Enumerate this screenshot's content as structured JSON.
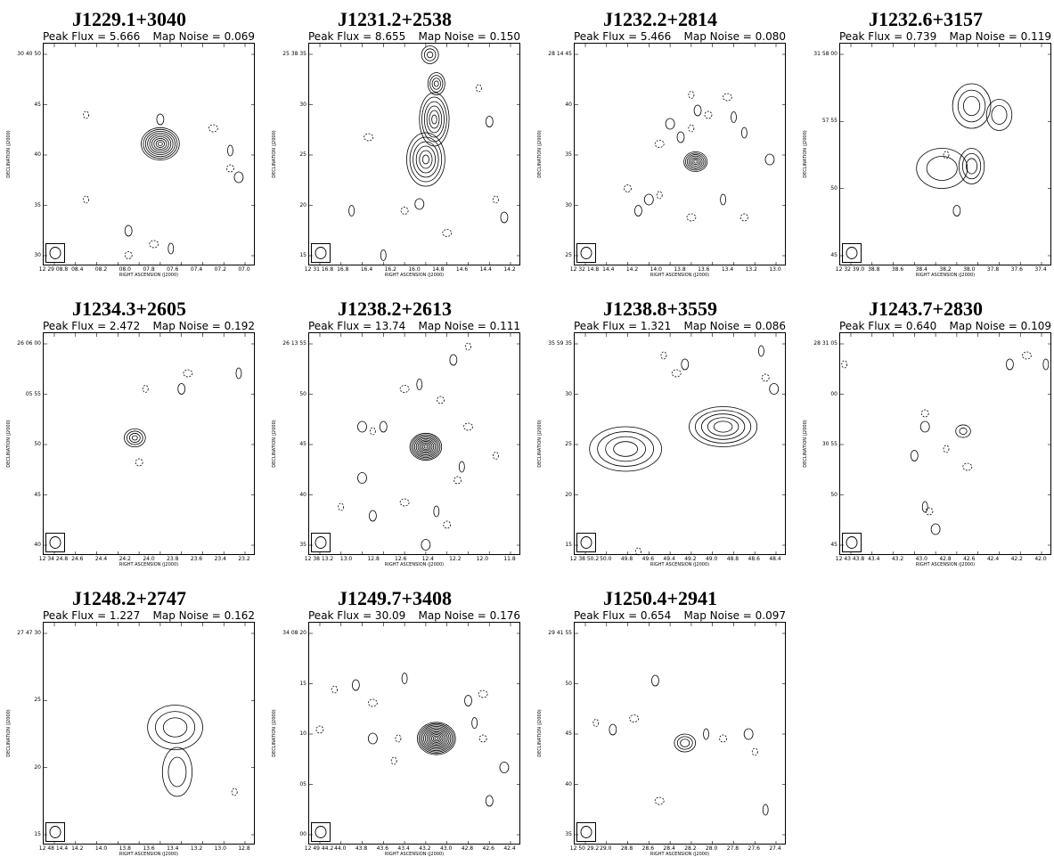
{
  "axes": {
    "xlabel": "RIGHT ASCENSION (J2000)",
    "ylabel": "DECLINATION (J2000)"
  },
  "panels": [
    {
      "title": "J1229.1+3040",
      "peak_flux": "Peak Flux = 5.666",
      "map_noise": "Map Noise = 0.069",
      "yticks": [
        "30 40 50",
        "45",
        "40",
        "35",
        "30"
      ],
      "xticks": [
        "12 29 08.8",
        "08.4",
        "08.2",
        "08.0",
        "07.8",
        "07.6",
        "07.4",
        "07.2",
        "07.0"
      ],
      "source": {
        "type": "compact",
        "cx": 0.55,
        "cy": 0.45,
        "r": 0.09,
        "levels": 9
      },
      "noise": [
        [
          0.2,
          0.32
        ],
        [
          0.55,
          0.34
        ],
        [
          0.8,
          0.38
        ],
        [
          0.88,
          0.48
        ],
        [
          0.88,
          0.56
        ],
        [
          0.92,
          0.6
        ],
        [
          0.2,
          0.7
        ],
        [
          0.4,
          0.84
        ],
        [
          0.52,
          0.9
        ],
        [
          0.6,
          0.92
        ],
        [
          0.4,
          0.95
        ]
      ]
    },
    {
      "title": "J1231.2+2538",
      "peak_flux": "Peak Flux = 8.655",
      "map_noise": "Map Noise = 0.150",
      "yticks": [
        "25 38 35",
        "30",
        "25",
        "20",
        "15"
      ],
      "xticks": [
        "12 31 16.8",
        "16.8",
        "16.4",
        "16.2",
        "16.0",
        "14.8",
        "14.6",
        "14.4",
        "14.2"
      ],
      "source": {
        "type": "jet",
        "points": [
          [
            0.59,
            0.34,
            0.07,
            0.12,
            6
          ],
          [
            0.55,
            0.52,
            0.09,
            0.12,
            6
          ],
          [
            0.6,
            0.18,
            0.04,
            0.05,
            4
          ],
          [
            0.57,
            0.05,
            0.04,
            0.04,
            3
          ]
        ]
      },
      "noise": [
        [
          0.8,
          0.2
        ],
        [
          0.85,
          0.35
        ],
        [
          0.28,
          0.42
        ],
        [
          0.2,
          0.75
        ],
        [
          0.45,
          0.75
        ],
        [
          0.52,
          0.72
        ],
        [
          0.88,
          0.7
        ],
        [
          0.92,
          0.78
        ],
        [
          0.65,
          0.85
        ],
        [
          0.35,
          0.95
        ]
      ]
    },
    {
      "title": "J1232.2+2814",
      "peak_flux": "Peak Flux = 5.466",
      "map_noise": "Map Noise = 0.080",
      "yticks": [
        "28 14 45",
        "40",
        "35",
        "30",
        "25"
      ],
      "xticks": [
        "12 32 14.8",
        "14.4",
        "14.2",
        "14.0",
        "13.8",
        "13.6",
        "13.4",
        "13.2",
        "13.0"
      ],
      "source": {
        "type": "compact",
        "cx": 0.57,
        "cy": 0.53,
        "r": 0.055,
        "levels": 7
      },
      "noise": [
        [
          0.55,
          0.23
        ],
        [
          0.58,
          0.3
        ],
        [
          0.72,
          0.24
        ],
        [
          0.75,
          0.33
        ],
        [
          0.63,
          0.32
        ],
        [
          0.45,
          0.36
        ],
        [
          0.55,
          0.38
        ],
        [
          0.5,
          0.42
        ],
        [
          0.4,
          0.45
        ],
        [
          0.8,
          0.4
        ],
        [
          0.25,
          0.65
        ],
        [
          0.35,
          0.7
        ],
        [
          0.4,
          0.68
        ],
        [
          0.3,
          0.75
        ],
        [
          0.55,
          0.78
        ],
        [
          0.7,
          0.7
        ],
        [
          0.8,
          0.78
        ],
        [
          0.92,
          0.52
        ]
      ]
    },
    {
      "title": "J1232.6+3157",
      "peak_flux": "Peak Flux = 0.739",
      "map_noise": "Map Noise = 0.119",
      "yticks": [
        "31 58 00",
        "57 55",
        "50",
        "45"
      ],
      "xticks": [
        "12 32 39.0",
        "38.8",
        "38.6",
        "38.4",
        "38.2",
        "38.0",
        "37.8",
        "37.6",
        "37.4"
      ],
      "source": {
        "type": "diffuse",
        "blobs": [
          [
            0.62,
            0.28,
            0.09,
            0.1,
            3
          ],
          [
            0.75,
            0.32,
            0.06,
            0.07,
            2
          ],
          [
            0.48,
            0.56,
            0.12,
            0.09,
            2
          ],
          [
            0.62,
            0.55,
            0.06,
            0.08,
            3
          ]
        ]
      },
      "noise": [
        [
          0.5,
          0.5
        ],
        [
          0.55,
          0.75
        ]
      ]
    },
    {
      "title": "J1234.3+2605",
      "peak_flux": "Peak Flux = 2.472",
      "map_noise": "Map Noise = 0.192",
      "yticks": [
        "26 06 00",
        "05 55",
        "50",
        "45",
        "40"
      ],
      "xticks": [
        "12 34 24.8",
        "24.6",
        "24.4",
        "24.2",
        "24.0",
        "23.8",
        "23.6",
        "23.4",
        "23.2"
      ],
      "source": {
        "type": "compact",
        "cx": 0.43,
        "cy": 0.47,
        "r": 0.05,
        "levels": 4
      },
      "noise": [
        [
          0.48,
          0.25
        ],
        [
          0.65,
          0.25
        ],
        [
          0.68,
          0.18
        ],
        [
          0.92,
          0.18
        ],
        [
          0.45,
          0.58
        ]
      ]
    },
    {
      "title": "J1238.2+2613",
      "peak_flux": "Peak Flux = 13.74",
      "map_noise": "Map Noise = 0.111",
      "yticks": [
        "26 13 55",
        "50",
        "45",
        "40",
        "35"
      ],
      "xticks": [
        "12 38 13.2",
        "13.0",
        "12.8",
        "12.6",
        "12.4",
        "12.2",
        "12.0",
        "11.8"
      ],
      "source": {
        "type": "compact",
        "cx": 0.55,
        "cy": 0.51,
        "r": 0.075,
        "levels": 10
      },
      "noise": [
        [
          0.75,
          0.06
        ],
        [
          0.68,
          0.12
        ],
        [
          0.45,
          0.25
        ],
        [
          0.52,
          0.23
        ],
        [
          0.62,
          0.3
        ],
        [
          0.25,
          0.42
        ],
        [
          0.3,
          0.44
        ],
        [
          0.35,
          0.42
        ],
        [
          0.75,
          0.42
        ],
        [
          0.72,
          0.6
        ],
        [
          0.7,
          0.66
        ],
        [
          0.25,
          0.65
        ],
        [
          0.15,
          0.78
        ],
        [
          0.3,
          0.82
        ],
        [
          0.45,
          0.76
        ],
        [
          0.6,
          0.8
        ],
        [
          0.65,
          0.86
        ],
        [
          0.55,
          0.95
        ],
        [
          0.88,
          0.55
        ]
      ]
    },
    {
      "title": "J1238.8+3559",
      "peak_flux": "Peak Flux = 1.321",
      "map_noise": "Map Noise = 0.086",
      "yticks": [
        "35 59 35",
        "30",
        "25",
        "20",
        "15"
      ],
      "xticks": [
        "12 38 50.2",
        "50.0",
        "49.8",
        "49.6",
        "49.4",
        "49.2",
        "49.0",
        "48.8",
        "48.6",
        "48.4"
      ],
      "source": {
        "type": "diffuse",
        "blobs": [
          [
            0.24,
            0.52,
            0.17,
            0.1,
            4
          ],
          [
            0.7,
            0.42,
            0.16,
            0.09,
            5
          ]
        ]
      },
      "noise": [
        [
          0.42,
          0.1
        ],
        [
          0.52,
          0.14
        ],
        [
          0.48,
          0.18
        ],
        [
          0.88,
          0.08
        ],
        [
          0.9,
          0.2
        ],
        [
          0.94,
          0.25
        ],
        [
          0.3,
          0.98
        ]
      ]
    },
    {
      "title": "J1243.7+2830",
      "peak_flux": "Peak Flux = 0.640",
      "map_noise": "Map Noise = 0.109",
      "yticks": [
        "28 31 05",
        "00",
        "30 55",
        "50",
        "45"
      ],
      "xticks": [
        "12 43 43.8",
        "43.4",
        "43.2",
        "43.0",
        "42.8",
        "42.6",
        "42.4",
        "42.2",
        "42.0"
      ],
      "source": {
        "type": "compact",
        "cx": 0.58,
        "cy": 0.44,
        "r": 0.035,
        "levels": 2
      },
      "noise": [
        [
          0.02,
          0.14
        ],
        [
          0.8,
          0.14
        ],
        [
          0.88,
          0.1
        ],
        [
          0.97,
          0.14
        ],
        [
          0.4,
          0.36
        ],
        [
          0.4,
          0.42
        ],
        [
          0.5,
          0.52
        ],
        [
          0.35,
          0.55
        ],
        [
          0.6,
          0.6
        ],
        [
          0.4,
          0.78
        ],
        [
          0.42,
          0.8
        ],
        [
          0.45,
          0.88
        ]
      ]
    },
    {
      "title": "J1248.2+2747",
      "peak_flux": "Peak Flux = 1.227",
      "map_noise": "Map Noise = 0.162",
      "yticks": [
        "27 47 30",
        "25",
        "20",
        "15"
      ],
      "xticks": [
        "12 48 14.4",
        "14.2",
        "14.0",
        "13.8",
        "13.6",
        "13.4",
        "13.2",
        "13.0",
        "12.8"
      ],
      "source": {
        "type": "diffuse",
        "blobs": [
          [
            0.62,
            0.47,
            0.13,
            0.1,
            3
          ],
          [
            0.63,
            0.67,
            0.07,
            0.11,
            2
          ]
        ]
      },
      "noise": [
        [
          0.9,
          0.76
        ]
      ]
    },
    {
      "title": "J1249.7+3408",
      "peak_flux": "Peak Flux = 30.09",
      "map_noise": "Map Noise = 0.176",
      "yticks": [
        "34 08 20",
        "15",
        "10",
        "05",
        "00"
      ],
      "xticks": [
        "12 49 44.2",
        "44.0",
        "43.8",
        "43.6",
        "43.4",
        "43.2",
        "43.0",
        "42.8",
        "42.6",
        "42.4"
      ],
      "source": {
        "type": "compact",
        "cx": 0.6,
        "cy": 0.52,
        "r": 0.09,
        "levels": 12
      },
      "noise": [
        [
          0.12,
          0.3
        ],
        [
          0.22,
          0.28
        ],
        [
          0.3,
          0.36
        ],
        [
          0.45,
          0.25
        ],
        [
          0.05,
          0.48
        ],
        [
          0.3,
          0.52
        ],
        [
          0.42,
          0.52
        ],
        [
          0.75,
          0.35
        ],
        [
          0.82,
          0.32
        ],
        [
          0.78,
          0.45
        ],
        [
          0.82,
          0.52
        ],
        [
          0.92,
          0.65
        ],
        [
          0.4,
          0.62
        ],
        [
          0.85,
          0.8
        ]
      ]
    },
    {
      "title": "J1250.4+2941",
      "peak_flux": "Peak Flux = 0.654",
      "map_noise": "Map Noise = 0.097",
      "yticks": [
        "29 41 55",
        "50",
        "45",
        "40",
        "35"
      ],
      "xticks": [
        "12 50 29.2",
        "29.0",
        "28.8",
        "28.6",
        "28.4",
        "28.2",
        "28.0",
        "27.8",
        "27.6",
        "27.4"
      ],
      "source": {
        "type": "diffuse",
        "blobs": [
          [
            0.52,
            0.54,
            0.05,
            0.04,
            3
          ]
        ]
      },
      "noise": [
        [
          0.1,
          0.45
        ],
        [
          0.18,
          0.48
        ],
        [
          0.28,
          0.43
        ],
        [
          0.62,
          0.5
        ],
        [
          0.7,
          0.52
        ],
        [
          0.82,
          0.5
        ],
        [
          0.85,
          0.58
        ],
        [
          0.38,
          0.26
        ],
        [
          0.4,
          0.8
        ],
        [
          0.9,
          0.84
        ]
      ]
    }
  ]
}
